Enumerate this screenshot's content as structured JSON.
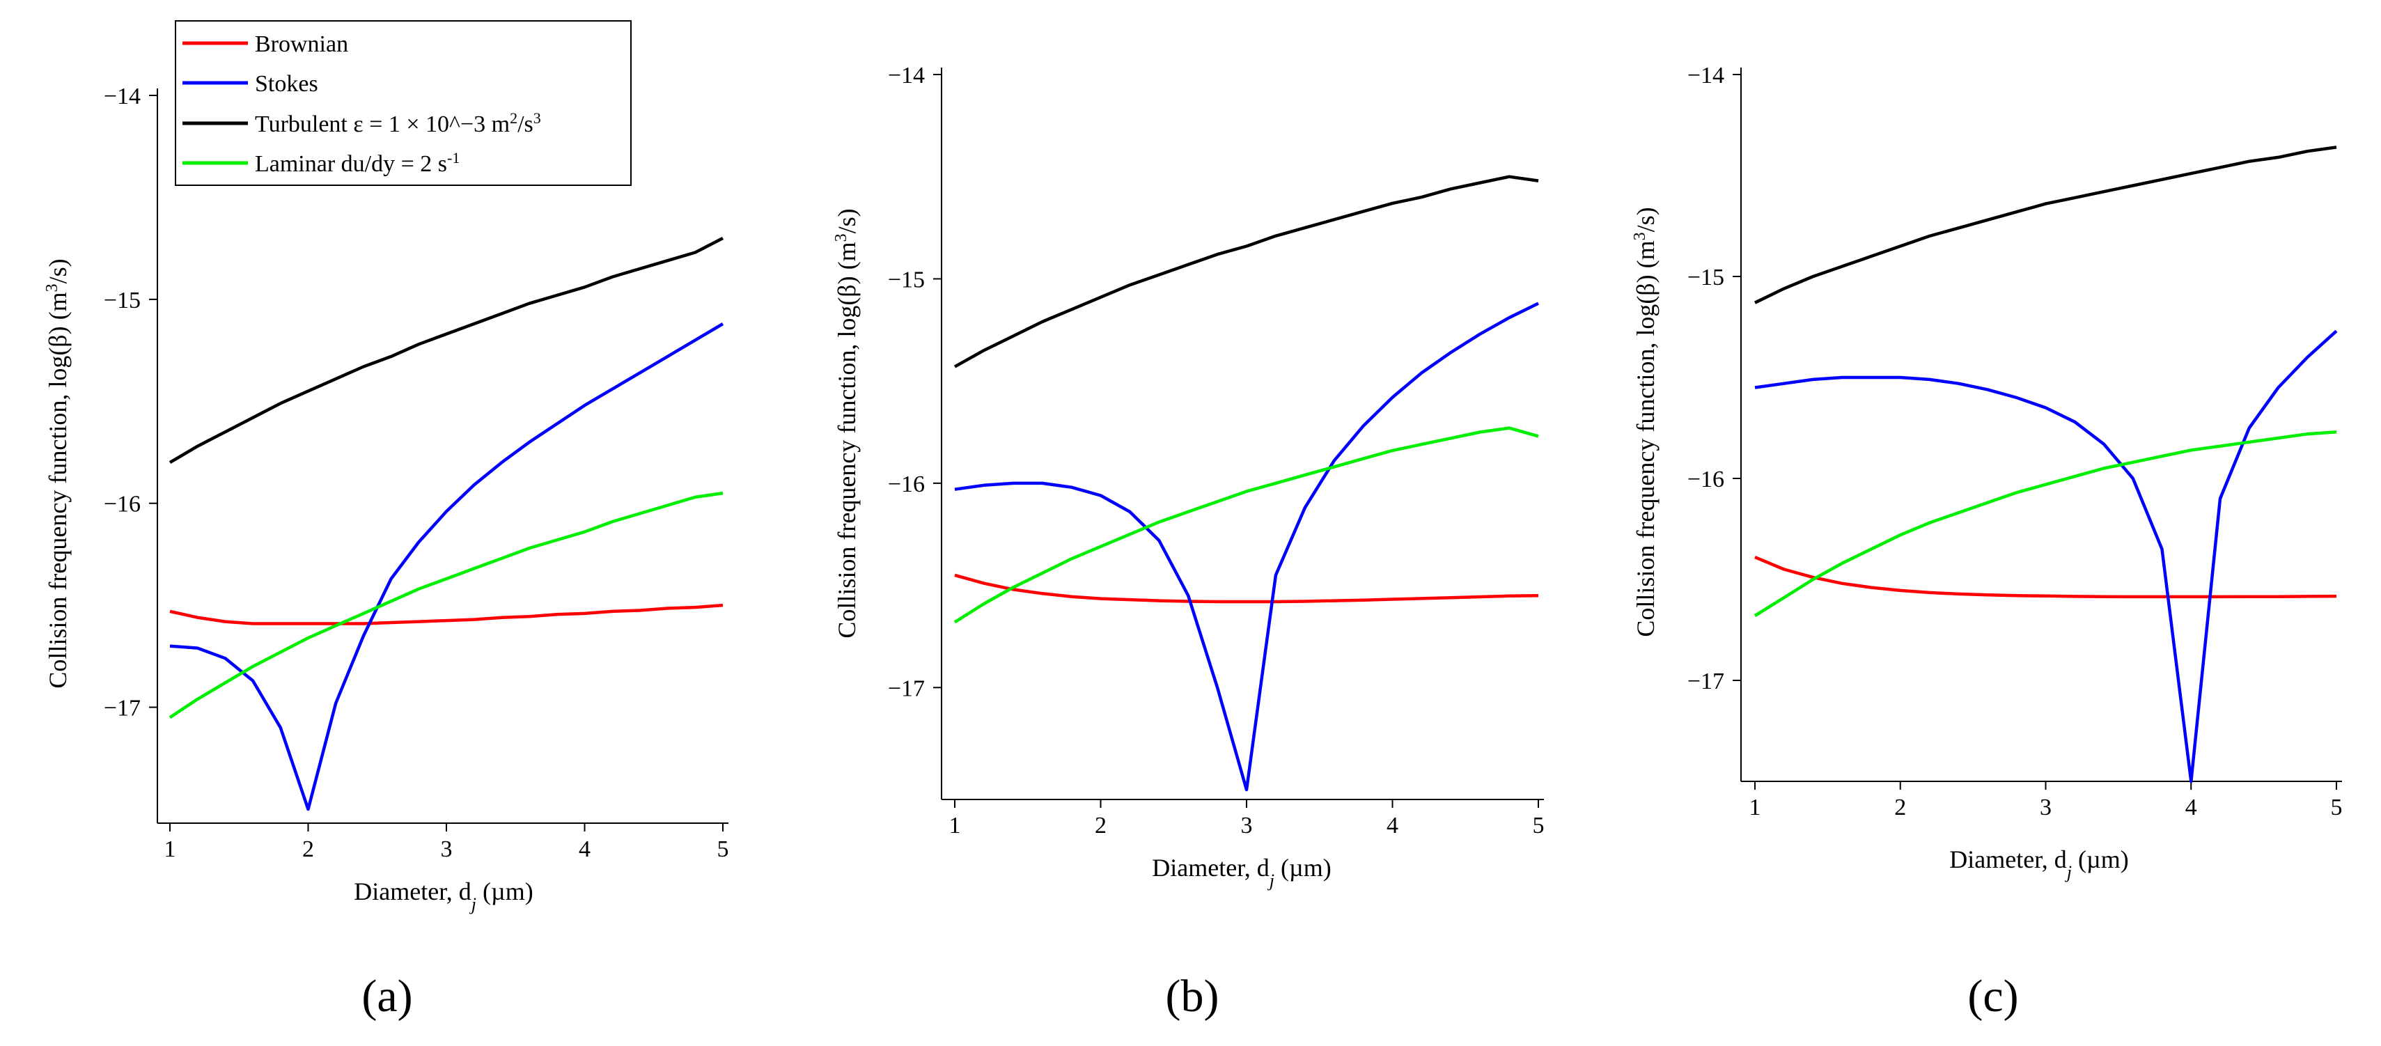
{
  "series_legend": [
    {
      "name": "Brownian",
      "color": "#ff0000"
    },
    {
      "name": "Stokes",
      "color": "#0000ff"
    },
    {
      "name": "Turbulent",
      "color": "#000000"
    },
    {
      "name": "Laminar",
      "color": "#00ee00"
    }
  ],
  "legend_text": {
    "brownian": "Brownian",
    "stokes": "Stokes",
    "turbulent_main": "Turbulent ε = 1 × 10^−3 m",
    "turbulent_sup2": "2",
    "turbulent_mid": "/s",
    "turbulent_sup3": "3",
    "laminar_main": "Laminar du/dy = 2 s",
    "laminar_sup": "-1"
  },
  "axis_text": {
    "ylabel_main": "Collision frequency function, log(β) (m",
    "ylabel_sup": "3",
    "ylabel_end": "/s)",
    "xlabel_main": "Diameter, d",
    "xlabel_sub": "j",
    "xlabel_end": " (µm)"
  },
  "chart_data": [
    {
      "type": "line",
      "panel_label": "(a)",
      "x_ticks": [
        "1",
        "2",
        "3",
        "4",
        "5"
      ],
      "y_ticks": [
        "−14",
        "−15",
        "−16",
        "−17"
      ],
      "xlim": [
        1,
        5
      ],
      "ylim": [
        -17.5,
        -14
      ],
      "x": [
        1.0,
        1.2,
        1.4,
        1.6,
        1.8,
        2.0,
        2.2,
        2.4,
        2.6,
        2.8,
        3.0,
        3.2,
        3.4,
        3.6,
        3.8,
        4.0,
        4.2,
        4.4,
        4.6,
        4.8,
        5.0
      ],
      "series": [
        {
          "name": "Brownian",
          "color": "#ff0000",
          "values": [
            -16.53,
            -16.56,
            -16.58,
            -16.59,
            -16.59,
            -16.59,
            -16.59,
            -16.59,
            -16.585,
            -16.58,
            -16.575,
            -16.57,
            -16.56,
            -16.555,
            -16.545,
            -16.54,
            -16.53,
            -16.525,
            -16.515,
            -16.51,
            -16.5
          ]
        },
        {
          "name": "Stokes",
          "color": "#0000ff",
          "values": [
            -16.7,
            -16.71,
            -16.76,
            -16.87,
            -17.1,
            -17.5,
            -16.98,
            -16.65,
            -16.37,
            -16.19,
            -16.04,
            -15.91,
            -15.8,
            -15.7,
            -15.61,
            -15.52,
            -15.44,
            -15.36,
            -15.28,
            -15.2,
            -15.12
          ]
        },
        {
          "name": "Turbulent",
          "color": "#000000",
          "values": [
            -15.8,
            -15.72,
            -15.65,
            -15.58,
            -15.51,
            -15.45,
            -15.39,
            -15.33,
            -15.28,
            -15.22,
            -15.17,
            -15.12,
            -15.07,
            -15.02,
            -14.98,
            -14.94,
            -14.89,
            -14.85,
            -14.81,
            -14.77,
            -14.7
          ]
        },
        {
          "name": "Laminar",
          "color": "#00ee00",
          "values": [
            -17.05,
            -16.96,
            -16.88,
            -16.8,
            -16.73,
            -16.66,
            -16.6,
            -16.54,
            -16.48,
            -16.42,
            -16.37,
            -16.32,
            -16.27,
            -16.22,
            -16.18,
            -16.14,
            -16.09,
            -16.05,
            -16.01,
            -15.97,
            -15.95
          ]
        }
      ]
    },
    {
      "type": "line",
      "panel_label": "(b)",
      "x_ticks": [
        "1",
        "2",
        "3",
        "4",
        "5"
      ],
      "y_ticks": [
        "−14",
        "−15",
        "−16",
        "−17"
      ],
      "xlim": [
        1,
        5
      ],
      "ylim": [
        -17.5,
        -14
      ],
      "x": [
        1.0,
        1.2,
        1.4,
        1.6,
        1.8,
        2.0,
        2.2,
        2.4,
        2.6,
        2.8,
        3.0,
        3.2,
        3.4,
        3.6,
        3.8,
        4.0,
        4.2,
        4.4,
        4.6,
        4.8,
        5.0
      ],
      "series": [
        {
          "name": "Brownian",
          "color": "#ff0000",
          "values": [
            -16.45,
            -16.49,
            -16.52,
            -16.54,
            -16.555,
            -16.565,
            -16.57,
            -16.575,
            -16.578,
            -16.58,
            -16.58,
            -16.58,
            -16.578,
            -16.575,
            -16.572,
            -16.568,
            -16.564,
            -16.56,
            -16.556,
            -16.552,
            -16.55
          ]
        },
        {
          "name": "Stokes",
          "color": "#0000ff",
          "values": [
            -16.03,
            -16.01,
            -16.0,
            -16.0,
            -16.02,
            -16.06,
            -16.14,
            -16.28,
            -16.55,
            -17.0,
            -17.5,
            -16.45,
            -16.12,
            -15.89,
            -15.72,
            -15.58,
            -15.46,
            -15.36,
            -15.27,
            -15.19,
            -15.12
          ]
        },
        {
          "name": "Turbulent",
          "color": "#000000",
          "values": [
            -15.43,
            -15.35,
            -15.28,
            -15.21,
            -15.15,
            -15.09,
            -15.03,
            -14.98,
            -14.93,
            -14.88,
            -14.84,
            -14.79,
            -14.75,
            -14.71,
            -14.67,
            -14.63,
            -14.6,
            -14.56,
            -14.53,
            -14.5,
            -14.52
          ]
        },
        {
          "name": "Laminar",
          "color": "#00ee00",
          "values": [
            -16.68,
            -16.59,
            -16.51,
            -16.44,
            -16.37,
            -16.31,
            -16.25,
            -16.19,
            -16.14,
            -16.09,
            -16.04,
            -16.0,
            -15.96,
            -15.92,
            -15.88,
            -15.84,
            -15.81,
            -15.78,
            -15.75,
            -15.73,
            -15.77
          ]
        }
      ]
    },
    {
      "type": "line",
      "panel_label": "(c)",
      "x_ticks": [
        "1",
        "2",
        "3",
        "4",
        "5"
      ],
      "y_ticks": [
        "−14",
        "−15",
        "−16",
        "−17"
      ],
      "xlim": [
        1,
        5
      ],
      "ylim": [
        -17.5,
        -14
      ],
      "x": [
        1.0,
        1.2,
        1.4,
        1.6,
        1.8,
        2.0,
        2.2,
        2.4,
        2.6,
        2.8,
        3.0,
        3.2,
        3.4,
        3.6,
        3.8,
        4.0,
        4.2,
        4.4,
        4.6,
        4.8,
        5.0
      ],
      "series": [
        {
          "name": "Brownian",
          "color": "#ff0000",
          "values": [
            -16.39,
            -16.45,
            -16.49,
            -16.52,
            -16.54,
            -16.555,
            -16.565,
            -16.572,
            -16.577,
            -16.58,
            -16.582,
            -16.584,
            -16.585,
            -16.586,
            -16.586,
            -16.586,
            -16.586,
            -16.585,
            -16.585,
            -16.584,
            -16.583
          ]
        },
        {
          "name": "Stokes",
          "color": "#0000ff",
          "values": [
            -15.55,
            -15.53,
            -15.51,
            -15.5,
            -15.5,
            -15.5,
            -15.51,
            -15.53,
            -15.56,
            -15.6,
            -15.65,
            -15.72,
            -15.83,
            -16.0,
            -16.35,
            -17.5,
            -16.1,
            -15.75,
            -15.55,
            -15.4,
            -15.27
          ]
        },
        {
          "name": "Turbulent",
          "color": "#000000",
          "values": [
            -15.13,
            -15.06,
            -15.0,
            -14.95,
            -14.9,
            -14.85,
            -14.8,
            -14.76,
            -14.72,
            -14.68,
            -14.64,
            -14.61,
            -14.58,
            -14.55,
            -14.52,
            -14.49,
            -14.46,
            -14.43,
            -14.41,
            -14.38,
            -14.36
          ]
        },
        {
          "name": "Laminar",
          "color": "#00ee00",
          "values": [
            -16.68,
            -16.59,
            -16.5,
            -16.42,
            -16.35,
            -16.28,
            -16.22,
            -16.17,
            -16.12,
            -16.07,
            -16.03,
            -15.99,
            -15.95,
            -15.92,
            -15.89,
            -15.86,
            -15.84,
            -15.82,
            -15.8,
            -15.78,
            -15.77
          ]
        }
      ]
    }
  ]
}
